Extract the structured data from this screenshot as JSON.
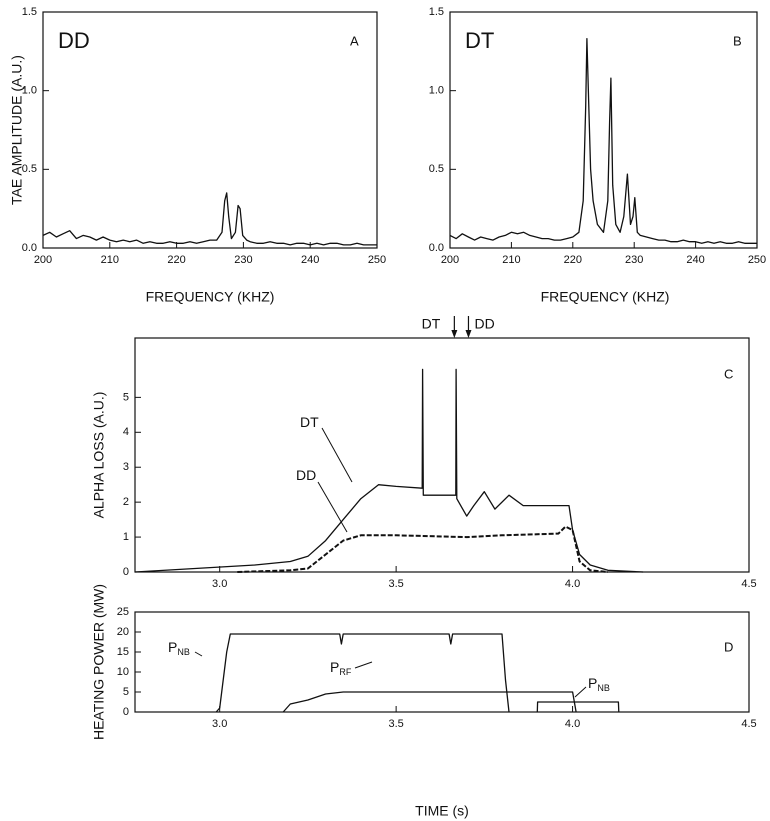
{
  "chart_data": [
    {
      "type": "line",
      "title": "DD",
      "panel": "A",
      "xlabel": "FREQUENCY (KHZ)",
      "ylabel": "TAE AMPLITUDE (A.U.)",
      "xlim": [
        200,
        250
      ],
      "xticks": [
        200,
        210,
        220,
        230,
        240,
        250
      ],
      "ylim": [
        0,
        1.5
      ],
      "yticks": [
        {
          "value": 0,
          "label": "0.0"
        },
        {
          "value": 0.5,
          "label": "0.5"
        },
        {
          "value": 1,
          "label": "1.0"
        },
        {
          "value": 1.5,
          "label": "1.5"
        }
      ],
      "series": [
        {
          "color": "#111111",
          "x": [
            200,
            201,
            202,
            203,
            204,
            205,
            206,
            207,
            208,
            209,
            210,
            211,
            212,
            213,
            214,
            215,
            216,
            217,
            218,
            219,
            220,
            221,
            222,
            223,
            224,
            225,
            226,
            226.8,
            227.2,
            227.5,
            227.8,
            228.2,
            228.8,
            229.2,
            229.5,
            229.9,
            230.5,
            231,
            232,
            233,
            234,
            235,
            236,
            237,
            238,
            239,
            240,
            241,
            242,
            243,
            244,
            245,
            246,
            247,
            248,
            249,
            250
          ],
          "values": [
            0.08,
            0.1,
            0.07,
            0.09,
            0.11,
            0.06,
            0.08,
            0.07,
            0.05,
            0.07,
            0.05,
            0.04,
            0.05,
            0.04,
            0.05,
            0.03,
            0.04,
            0.03,
            0.03,
            0.04,
            0.03,
            0.03,
            0.04,
            0.03,
            0.04,
            0.05,
            0.05,
            0.1,
            0.3,
            0.35,
            0.2,
            0.06,
            0.1,
            0.27,
            0.25,
            0.08,
            0.05,
            0.04,
            0.03,
            0.03,
            0.04,
            0.03,
            0.03,
            0.02,
            0.03,
            0.03,
            0.02,
            0.03,
            0.02,
            0.03,
            0.03,
            0.02,
            0.02,
            0.03,
            0.02,
            0.02,
            0.02
          ]
        }
      ]
    },
    {
      "type": "line",
      "title": "DT",
      "panel": "B",
      "xlabel": "FREQUENCY (KHZ)",
      "xlim": [
        200,
        250
      ],
      "xticks": [
        200,
        210,
        220,
        230,
        240,
        250
      ],
      "ylim": [
        0,
        1.5
      ],
      "yticks": [
        {
          "value": 0,
          "label": "0.0"
        },
        {
          "value": 0.5,
          "label": "0.5"
        },
        {
          "value": 1,
          "label": "1.0"
        },
        {
          "value": 1.5,
          "label": "1.5"
        }
      ],
      "series": [
        {
          "color": "#111111",
          "x": [
            200,
            201,
            202,
            203,
            204,
            205,
            206,
            207,
            208,
            209,
            210,
            211,
            212,
            213,
            214,
            215,
            216,
            217,
            218,
            219,
            220,
            221,
            221.7,
            222.1,
            222.3,
            222.6,
            222.9,
            223.3,
            224,
            225,
            225.7,
            226,
            226.2,
            226.5,
            227,
            227.7,
            228.3,
            228.9,
            229.4,
            229.8,
            230.1,
            230.5,
            231,
            232,
            233,
            234,
            235,
            236,
            237,
            238,
            239,
            240,
            241,
            242,
            243,
            244,
            245,
            246,
            247,
            248,
            249,
            250
          ],
          "values": [
            0.08,
            0.06,
            0.09,
            0.07,
            0.05,
            0.07,
            0.06,
            0.05,
            0.07,
            0.08,
            0.1,
            0.09,
            0.1,
            0.08,
            0.07,
            0.06,
            0.06,
            0.05,
            0.05,
            0.06,
            0.07,
            0.1,
            0.3,
            0.9,
            1.33,
            0.9,
            0.5,
            0.3,
            0.15,
            0.1,
            0.3,
            0.8,
            1.08,
            0.4,
            0.15,
            0.1,
            0.2,
            0.47,
            0.15,
            0.2,
            0.32,
            0.1,
            0.08,
            0.07,
            0.06,
            0.05,
            0.05,
            0.04,
            0.04,
            0.05,
            0.04,
            0.04,
            0.03,
            0.04,
            0.03,
            0.04,
            0.03,
            0.03,
            0.04,
            0.03,
            0.03,
            0.03
          ]
        }
      ]
    },
    {
      "type": "line",
      "panel": "C",
      "ylabel": "ALPHA LOSS (A.U.)",
      "markers": [
        "DT",
        "DD"
      ],
      "xlim": [
        2.76,
        4.5
      ],
      "xticks": [
        {
          "value": 3,
          "label": "3.0"
        },
        3.5,
        {
          "value": 4,
          "label": "4.0"
        },
        4.5
      ],
      "ylim": [
        0,
        6.7
      ],
      "yticks": [
        0,
        1,
        2,
        3,
        4,
        5
      ],
      "series": [
        {
          "name": "DT",
          "color": "#111111",
          "linestyle": "solid",
          "x": [
            2.76,
            3.1,
            3.2,
            3.25,
            3.3,
            3.35,
            3.4,
            3.45,
            3.5,
            3.574,
            3.575,
            3.577,
            3.669,
            3.67,
            3.672,
            3.7,
            3.72,
            3.75,
            3.78,
            3.82,
            3.86,
            3.99,
            4.0,
            4.02,
            4.05,
            4.1,
            4.2
          ],
          "values": [
            0,
            0.2,
            0.3,
            0.45,
            0.9,
            1.5,
            2.1,
            2.5,
            2.45,
            2.4,
            5.8,
            2.2,
            2.2,
            5.8,
            2.1,
            1.6,
            1.9,
            2.3,
            1.8,
            2.2,
            1.9,
            1.9,
            1.2,
            0.5,
            0.2,
            0.05,
            0
          ]
        },
        {
          "name": "DD",
          "color": "#111111",
          "linestyle": "dashed",
          "x": [
            3.05,
            3.2,
            3.25,
            3.3,
            3.35,
            3.4,
            3.5,
            3.7,
            3.8,
            3.96,
            3.98,
            4.0,
            4.02,
            4.05,
            4.1
          ],
          "values": [
            0,
            0.05,
            0.1,
            0.5,
            0.9,
            1.05,
            1.05,
            1.0,
            1.05,
            1.1,
            1.3,
            1.2,
            0.3,
            0.05,
            0
          ]
        }
      ]
    },
    {
      "type": "line",
      "panel": "D",
      "ylabel": "HEATING POWER (MW)",
      "xlabel": "TIME (s)",
      "xlim": [
        2.76,
        4.5
      ],
      "xticks": [
        {
          "value": 3,
          "label": "3.0"
        },
        3.5,
        {
          "value": 4,
          "label": "4.0"
        },
        4.5
      ],
      "ylim": [
        0,
        25
      ],
      "yticks": [
        0,
        5,
        10,
        15,
        20,
        25
      ],
      "series": [
        {
          "name": "P",
          "subscript": "NB",
          "color": "#111111",
          "linestyle": "solid",
          "x": [
            2.99,
            3.0,
            3.02,
            3.03,
            3.2,
            3.34,
            3.345,
            3.35,
            3.65,
            3.655,
            3.66,
            3.8,
            3.81,
            3.82
          ],
          "values": [
            0,
            1,
            15,
            19.5,
            19.5,
            19.5,
            17,
            19.5,
            19.5,
            17,
            19.5,
            19.5,
            8,
            0
          ]
        },
        {
          "name": "P",
          "subscript": "RF",
          "color": "#111111",
          "linestyle": "solid",
          "x": [
            3.18,
            3.2,
            3.25,
            3.3,
            3.35,
            4.0,
            4.01
          ],
          "values": [
            0,
            2,
            3,
            4.5,
            5,
            5,
            0
          ]
        },
        {
          "name": "P",
          "subscript": "NB",
          "color": "#111111",
          "linestyle": "solid",
          "x": [
            3.9,
            3.901,
            4.13,
            4.131
          ],
          "values": [
            0,
            2.5,
            2.5,
            0
          ]
        }
      ]
    }
  ]
}
